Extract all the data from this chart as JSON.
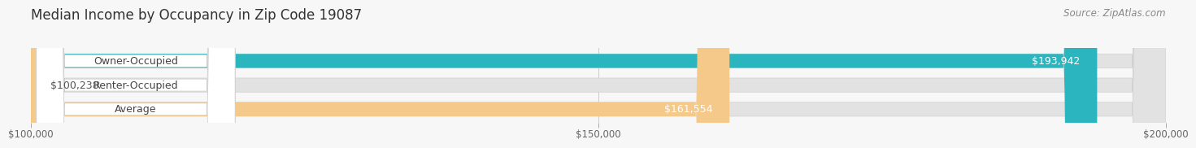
{
  "title": "Median Income by Occupancy in Zip Code 19087",
  "source": "Source: ZipAtlas.com",
  "categories": [
    "Owner-Occupied",
    "Renter-Occupied",
    "Average"
  ],
  "values": [
    193942,
    100238,
    161554
  ],
  "bar_colors": [
    "#2bb5bf",
    "#b89ec8",
    "#f5c98a"
  ],
  "xmin": 100000,
  "xmax": 200000,
  "xticks": [
    100000,
    150000,
    200000
  ],
  "xtick_labels": [
    "$100,000",
    "$150,000",
    "$200,000"
  ],
  "bar_height": 0.58,
  "background_color": "#f7f7f7",
  "bar_bg_color": "#e2e2e2",
  "title_fontsize": 12,
  "source_fontsize": 8.5,
  "label_fontsize": 9,
  "value_fontsize": 9,
  "grid_color": "#cccccc",
  "text_color": "#444444",
  "value_text_color_inside": "#ffffff",
  "value_text_color_outside": "#555555"
}
